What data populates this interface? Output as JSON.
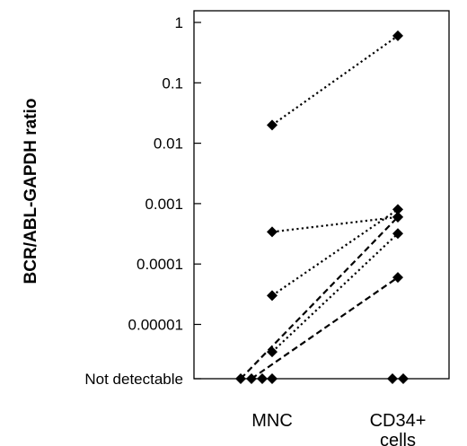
{
  "chart_data": {
    "type": "scatter",
    "title": "",
    "ylabel": "BCR/ABL-GAPDH ratio",
    "xlabel": "",
    "y_scale": "log",
    "y_ticks": [
      {
        "value": "Not detectable",
        "label": "Not detectable"
      },
      {
        "value": 1e-05,
        "label": "0.00001"
      },
      {
        "value": 0.0001,
        "label": "0.0001"
      },
      {
        "value": 0.001,
        "label": "0.001"
      },
      {
        "value": 0.01,
        "label": "0.01"
      },
      {
        "value": 0.1,
        "label": "0.1"
      },
      {
        "value": 1,
        "label": "1"
      }
    ],
    "categories": [
      {
        "key": "MNC",
        "lines": [
          "MNC"
        ]
      },
      {
        "key": "CD34+ cells",
        "lines": [
          "CD34+",
          "cells"
        ]
      }
    ],
    "grid": false,
    "legend": "none",
    "marker": "diamond",
    "marker_color": "#000000",
    "pairs": [
      {
        "MNC": 0.02,
        "CD34+ cells": 0.6,
        "line_style": "dotted"
      },
      {
        "MNC": 0.00034,
        "CD34+ cells": 0.0006,
        "line_style": "dotted"
      },
      {
        "MNC": 3e-05,
        "CD34+ cells": 0.0008,
        "line_style": "dotted"
      },
      {
        "MNC": 3.5e-06,
        "CD34+ cells": 0.00032,
        "line_style": "dotted"
      },
      {
        "MNC": "Not detectable",
        "CD34+ cells": 0.0006,
        "line_style": "dashed"
      },
      {
        "MNC": "Not detectable",
        "CD34+ cells": 6e-05,
        "line_style": "dashed"
      },
      {
        "MNC": "Not detectable",
        "CD34+ cells": "Not detectable",
        "line_style": "none"
      },
      {
        "MNC": "Not detectable",
        "CD34+ cells": "Not detectable",
        "line_style": "none"
      }
    ]
  }
}
